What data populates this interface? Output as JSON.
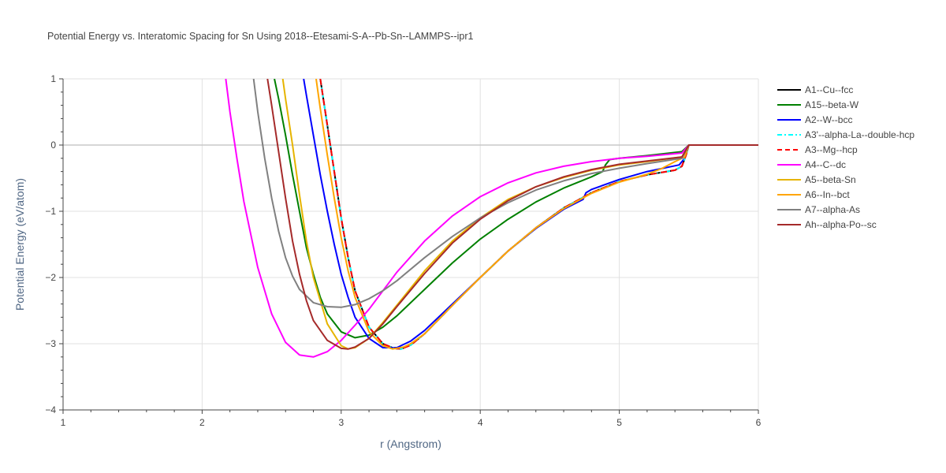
{
  "chart_data": {
    "type": "line",
    "title": "Potential Energy vs. Interatomic Spacing for Sn Using 2018--Etesami-S-A--Pb-Sn--LAMMPS--ipr1",
    "xlabel": "r (Angstrom)",
    "ylabel": "Potential Energy (eV/atom)",
    "xlim": [
      1,
      6
    ],
    "ylim": [
      -4,
      1
    ],
    "xticks": [
      1,
      2,
      3,
      4,
      5,
      6
    ],
    "yticks": [
      1,
      0,
      -1,
      -2,
      -3,
      -4
    ],
    "xtick_labels": [
      "1",
      "2",
      "3",
      "4",
      "5",
      "6"
    ],
    "ytick_labels": [
      "1",
      "0",
      "−1",
      "−2",
      "−3",
      "−4"
    ],
    "grid": true,
    "legend_position": "right",
    "series": [
      {
        "name": "A1--Cu--fcc",
        "color": "#000000",
        "dash": "solid",
        "x": [
          2.85,
          2.9,
          2.95,
          3.0,
          3.05,
          3.1,
          3.2,
          3.3,
          3.38,
          3.43,
          3.5,
          3.6,
          3.8,
          4.0,
          4.2,
          4.4,
          4.6,
          4.8,
          5.0,
          5.2,
          5.4,
          5.45,
          5.48,
          5.5,
          5.6,
          6.0
        ],
        "y": [
          1.0,
          0.3,
          -0.4,
          -1.1,
          -1.7,
          -2.2,
          -2.75,
          -3.0,
          -3.07,
          -3.08,
          -3.02,
          -2.85,
          -2.42,
          -2.0,
          -1.6,
          -1.25,
          -0.95,
          -0.72,
          -0.55,
          -0.45,
          -0.38,
          -0.32,
          -0.15,
          0.0,
          0.0,
          0.0
        ]
      },
      {
        "name": "A15--beta-W",
        "color": "#008000",
        "dash": "solid",
        "x": [
          2.52,
          2.55,
          2.6,
          2.65,
          2.7,
          2.75,
          2.8,
          2.85,
          2.9,
          3.0,
          3.1,
          3.2,
          3.3,
          3.4,
          3.6,
          3.8,
          4.0,
          4.2,
          4.4,
          4.6,
          4.8,
          4.88,
          4.9,
          4.93,
          5.0,
          5.2,
          5.45,
          5.5,
          6.0
        ],
        "y": [
          1.0,
          0.7,
          0.15,
          -0.45,
          -1.0,
          -1.55,
          -1.95,
          -2.3,
          -2.55,
          -2.82,
          -2.91,
          -2.87,
          -2.75,
          -2.58,
          -2.18,
          -1.78,
          -1.42,
          -1.12,
          -0.86,
          -0.65,
          -0.48,
          -0.4,
          -0.3,
          -0.22,
          -0.2,
          -0.16,
          -0.1,
          0.0,
          0.0
        ]
      },
      {
        "name": "A2--W--bcc",
        "color": "#0000ff",
        "dash": "solid",
        "x": [
          2.73,
          2.75,
          2.8,
          2.85,
          2.9,
          2.95,
          3.0,
          3.05,
          3.1,
          3.2,
          3.3,
          3.4,
          3.5,
          3.6,
          3.8,
          4.0,
          4.2,
          4.4,
          4.6,
          4.74,
          4.76,
          4.8,
          5.0,
          5.2,
          5.43,
          5.47,
          5.5,
          6.0
        ],
        "y": [
          1.0,
          0.75,
          0.15,
          -0.45,
          -1.0,
          -1.5,
          -1.95,
          -2.3,
          -2.6,
          -2.92,
          -3.06,
          -3.06,
          -2.96,
          -2.8,
          -2.4,
          -2.0,
          -1.6,
          -1.26,
          -0.97,
          -0.82,
          -0.72,
          -0.67,
          -0.52,
          -0.4,
          -0.3,
          -0.2,
          0.0,
          0.0
        ]
      },
      {
        "name": "A3'--alpha-La--double-hcp",
        "color": "#00ffff",
        "dash": "dashdot",
        "x": [
          2.85,
          2.9,
          2.95,
          3.0,
          3.05,
          3.1,
          3.2,
          3.3,
          3.38,
          3.43,
          3.5,
          3.6,
          3.8,
          4.0,
          4.2,
          4.4,
          4.6,
          4.8,
          5.0,
          5.2,
          5.4,
          5.45,
          5.48,
          5.5,
          5.6,
          6.0
        ],
        "y": [
          1.0,
          0.3,
          -0.4,
          -1.1,
          -1.7,
          -2.2,
          -2.75,
          -3.0,
          -3.07,
          -3.08,
          -3.02,
          -2.85,
          -2.42,
          -2.0,
          -1.6,
          -1.25,
          -0.95,
          -0.72,
          -0.55,
          -0.45,
          -0.38,
          -0.32,
          -0.15,
          0.0,
          0.0,
          0.0
        ]
      },
      {
        "name": "A3--Mg--hcp",
        "color": "#ff0000",
        "dash": "dash",
        "x": [
          2.85,
          2.9,
          2.95,
          3.0,
          3.05,
          3.1,
          3.2,
          3.3,
          3.38,
          3.43,
          3.5,
          3.6,
          3.8,
          4.0,
          4.2,
          4.4,
          4.6,
          4.8,
          5.0,
          5.2,
          5.4,
          5.45,
          5.48,
          5.5,
          5.6,
          6.0
        ],
        "y": [
          1.0,
          0.3,
          -0.4,
          -1.1,
          -1.7,
          -2.2,
          -2.75,
          -3.0,
          -3.07,
          -3.08,
          -3.02,
          -2.85,
          -2.42,
          -2.0,
          -1.6,
          -1.25,
          -0.95,
          -0.72,
          -0.55,
          -0.45,
          -0.38,
          -0.32,
          -0.15,
          0.0,
          0.0,
          0.0
        ]
      },
      {
        "name": "A4--C--dc",
        "color": "#ff00ff",
        "dash": "solid",
        "x": [
          2.17,
          2.2,
          2.25,
          2.3,
          2.4,
          2.5,
          2.6,
          2.7,
          2.8,
          2.9,
          3.0,
          3.1,
          3.2,
          3.4,
          3.6,
          3.8,
          4.0,
          4.2,
          4.4,
          4.6,
          4.8,
          5.0,
          5.2,
          5.45,
          5.5,
          6.0
        ],
        "y": [
          1.0,
          0.5,
          -0.2,
          -0.85,
          -1.85,
          -2.55,
          -2.98,
          -3.17,
          -3.2,
          -3.12,
          -2.95,
          -2.72,
          -2.48,
          -1.92,
          -1.45,
          -1.07,
          -0.78,
          -0.57,
          -0.42,
          -0.32,
          -0.25,
          -0.2,
          -0.17,
          -0.12,
          0.0,
          0.0
        ]
      },
      {
        "name": "A5--beta-Sn",
        "color": "#e6b400",
        "dash": "solid",
        "x": [
          2.58,
          2.6,
          2.65,
          2.7,
          2.75,
          2.8,
          2.9,
          3.0,
          3.05,
          3.1,
          3.2,
          3.3,
          3.4,
          3.6,
          3.8,
          4.0,
          4.2,
          4.4,
          4.6,
          4.8,
          5.0,
          5.2,
          5.45,
          5.5,
          6.0
        ],
        "y": [
          1.0,
          0.7,
          0.0,
          -0.75,
          -1.45,
          -2.0,
          -2.7,
          -3.03,
          -3.08,
          -3.06,
          -2.92,
          -2.68,
          -2.42,
          -1.9,
          -1.45,
          -1.1,
          -0.82,
          -0.63,
          -0.49,
          -0.38,
          -0.3,
          -0.25,
          -0.18,
          0.0,
          0.0
        ]
      },
      {
        "name": "A6--In--bct",
        "color": "#ffa500",
        "dash": "solid",
        "x": [
          2.82,
          2.85,
          2.9,
          2.95,
          3.0,
          3.05,
          3.1,
          3.2,
          3.3,
          3.37,
          3.45,
          3.5,
          3.6,
          3.8,
          4.0,
          4.2,
          4.4,
          4.6,
          4.8,
          5.0,
          5.2,
          5.3,
          5.4,
          5.47,
          5.5,
          6.0
        ],
        "y": [
          1.0,
          0.55,
          -0.15,
          -0.8,
          -1.4,
          -1.9,
          -2.3,
          -2.82,
          -3.03,
          -3.08,
          -3.05,
          -3.0,
          -2.85,
          -2.42,
          -2.0,
          -1.6,
          -1.25,
          -0.96,
          -0.73,
          -0.56,
          -0.44,
          -0.36,
          -0.25,
          -0.18,
          0.0,
          0.0
        ]
      },
      {
        "name": "A7--alpha-As",
        "color": "#808080",
        "dash": "solid",
        "x": [
          2.37,
          2.4,
          2.45,
          2.5,
          2.55,
          2.6,
          2.65,
          2.7,
          2.8,
          2.9,
          3.0,
          3.1,
          3.2,
          3.3,
          3.4,
          3.6,
          3.8,
          4.0,
          4.2,
          4.4,
          4.6,
          4.8,
          5.0,
          5.2,
          5.45,
          5.5,
          6.0
        ],
        "y": [
          1.0,
          0.5,
          -0.2,
          -0.8,
          -1.3,
          -1.7,
          -1.98,
          -2.18,
          -2.38,
          -2.44,
          -2.45,
          -2.41,
          -2.32,
          -2.2,
          -2.05,
          -1.7,
          -1.38,
          -1.1,
          -0.87,
          -0.68,
          -0.54,
          -0.43,
          -0.35,
          -0.28,
          -0.2,
          0.0,
          0.0
        ]
      },
      {
        "name": "Ah--alpha-Po--sc",
        "color": "#a52a2a",
        "dash": "solid",
        "x": [
          2.47,
          2.5,
          2.55,
          2.6,
          2.65,
          2.7,
          2.75,
          2.8,
          2.9,
          3.0,
          3.05,
          3.1,
          3.2,
          3.3,
          3.4,
          3.6,
          3.8,
          4.0,
          4.2,
          4.4,
          4.6,
          4.8,
          5.0,
          5.2,
          5.45,
          5.5,
          6.0
        ],
        "y": [
          1.0,
          0.6,
          -0.1,
          -0.8,
          -1.45,
          -1.95,
          -2.35,
          -2.65,
          -2.95,
          -3.07,
          -3.08,
          -3.05,
          -2.92,
          -2.7,
          -2.44,
          -1.94,
          -1.48,
          -1.12,
          -0.84,
          -0.63,
          -0.48,
          -0.37,
          -0.29,
          -0.24,
          -0.18,
          0.0,
          0.0
        ]
      }
    ]
  }
}
